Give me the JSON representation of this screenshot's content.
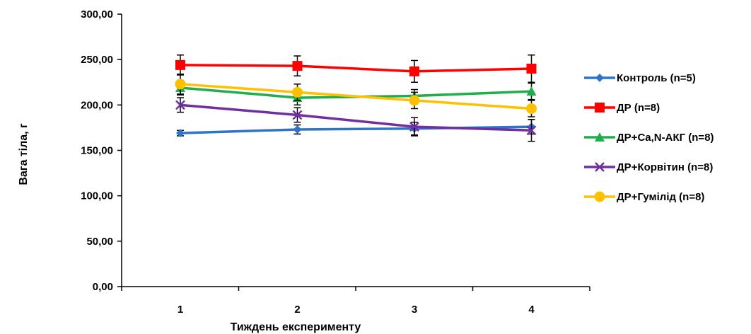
{
  "chart_data": {
    "type": "line",
    "title": "",
    "xlabel": "Тиждень експерименту",
    "ylabel": "Вага тіла, г",
    "ylim": [
      0,
      300
    ],
    "yticks": [
      "0,00",
      "50,00",
      "100,00",
      "150,00",
      "200,00",
      "250,00",
      "300,00"
    ],
    "categories": [
      "1",
      "2",
      "3",
      "4"
    ],
    "grid": false,
    "legend_position": "right",
    "series": [
      {
        "name": "Контроль (n=5)",
        "color": "#2E75C9",
        "marker": "diamond",
        "values": [
          169,
          173,
          174,
          176
        ],
        "errors": [
          3,
          5,
          7,
          8
        ]
      },
      {
        "name": "ДР (n=8)",
        "color": "#FF0000",
        "marker": "square",
        "values": [
          244,
          243,
          237,
          240
        ],
        "errors": [
          11,
          11,
          12,
          15
        ]
      },
      {
        "name": "ДР+Ca,N-АКГ (n=8)",
        "color": "#1FAE4B",
        "marker": "triangle",
        "values": [
          219,
          208,
          210,
          215
        ],
        "errors": [
          8,
          8,
          7,
          9
        ]
      },
      {
        "name": "ДР+Корвітин (n=8)",
        "color": "#7030A0",
        "marker": "x",
        "values": [
          200,
          189,
          176,
          172
        ],
        "errors": [
          8,
          8,
          10,
          12
        ]
      },
      {
        "name": "ДР+Гумілід (n=8)",
        "color": "#FFC000",
        "marker": "circle",
        "values": [
          223,
          214,
          205,
          196
        ],
        "errors": [
          11,
          9,
          9,
          9
        ]
      }
    ]
  }
}
